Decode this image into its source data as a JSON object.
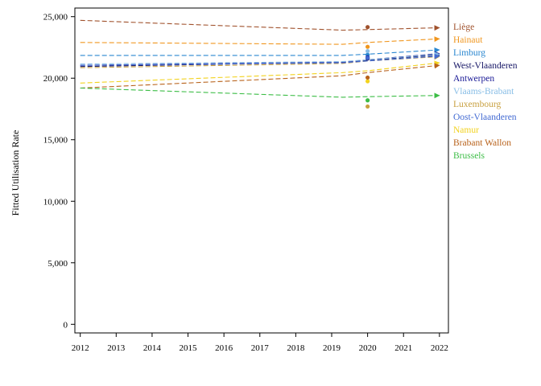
{
  "chart_data": {
    "type": "line",
    "title": "",
    "xlabel": "",
    "ylabel": "Fitted Utilisation Rate",
    "xlim": [
      2011.85,
      2022.25
    ],
    "ylim": [
      -700,
      25700
    ],
    "x_ticks": [
      2012,
      2013,
      2014,
      2015,
      2016,
      2017,
      2018,
      2019,
      2020,
      2021,
      2022
    ],
    "y_ticks": [
      0,
      5000,
      10000,
      15000,
      20000,
      25000
    ],
    "y_tick_labels": [
      "0",
      "5,000",
      "10,000",
      "15,000",
      "20,000",
      "25,000"
    ],
    "x_tick_labels": [
      "2012",
      "2013",
      "2014",
      "2015",
      "2016",
      "2017",
      "2018",
      "2019",
      "2020",
      "2021",
      "2022"
    ],
    "grid": false,
    "legend_placement": "right",
    "line_style": "dashed",
    "series": [
      {
        "name": "Liège",
        "color": "#a0522d",
        "line": [
          [
            2012,
            24700
          ],
          [
            2019.3,
            23900
          ],
          [
            2020,
            23950
          ],
          [
            2022,
            24100
          ]
        ],
        "point": [
          2020,
          24150
        ]
      },
      {
        "name": "Hainaut",
        "color": "#f0961e",
        "line": [
          [
            2012,
            22900
          ],
          [
            2019.3,
            22750
          ],
          [
            2020,
            22900
          ],
          [
            2022,
            23200
          ]
        ],
        "point": [
          2020,
          22550
        ]
      },
      {
        "name": "Limburg",
        "color": "#2a87d0",
        "line": [
          [
            2012,
            21850
          ],
          [
            2019.3,
            21850
          ],
          [
            2020,
            21950
          ],
          [
            2022,
            22300
          ]
        ],
        "point": [
          2020,
          21900
        ]
      },
      {
        "name": "West-Vlaanderen",
        "color": "#141464",
        "line": [
          [
            2012,
            20950
          ],
          [
            2019.3,
            21300
          ],
          [
            2020,
            21450
          ],
          [
            2022,
            21900
          ]
        ],
        "point": [
          2020,
          21600
        ]
      },
      {
        "name": "Antwerpen",
        "color": "#1a1a96",
        "line": [
          [
            2012,
            21050
          ],
          [
            2019.3,
            21300
          ],
          [
            2020,
            21500
          ],
          [
            2022,
            22000
          ]
        ],
        "point": [
          2020,
          21700
        ]
      },
      {
        "name": "Vlaams-Brabant",
        "color": "#87bde6",
        "line": [
          [
            2012,
            21150
          ],
          [
            2019.3,
            21350
          ],
          [
            2020,
            21500
          ],
          [
            2022,
            21950
          ]
        ],
        "point": [
          2020,
          22200
        ]
      },
      {
        "name": "Luxembourg",
        "color": "#c8a040",
        "line": [
          [
            2012,
            20850
          ],
          [
            2019.3,
            21200
          ],
          [
            2020,
            21400
          ],
          [
            2022,
            21750
          ]
        ],
        "point": [
          2020,
          17700
        ]
      },
      {
        "name": "Oost-Vlaanderen",
        "color": "#4169d2",
        "line": [
          [
            2012,
            21050
          ],
          [
            2019.3,
            21250
          ],
          [
            2020,
            21400
          ],
          [
            2022,
            21800
          ]
        ],
        "point": [
          2020,
          21650
        ]
      },
      {
        "name": "Namur",
        "color": "#f2d21e",
        "line": [
          [
            2012,
            19600
          ],
          [
            2019.3,
            20450
          ],
          [
            2020,
            20600
          ],
          [
            2022,
            21250
          ]
        ],
        "point": [
          2020,
          19750
        ]
      },
      {
        "name": "Brabant Wallon",
        "color": "#b8621b",
        "line": [
          [
            2012,
            19200
          ],
          [
            2019.3,
            20200
          ],
          [
            2020,
            20450
          ],
          [
            2022,
            21050
          ]
        ],
        "point": [
          2020,
          20050
        ]
      },
      {
        "name": "Brussels",
        "color": "#3cbd46",
        "line": [
          [
            2012,
            19200
          ],
          [
            2019.3,
            18450
          ],
          [
            2020,
            18500
          ],
          [
            2022,
            18600
          ]
        ],
        "point": [
          2020,
          18200
        ]
      }
    ]
  }
}
